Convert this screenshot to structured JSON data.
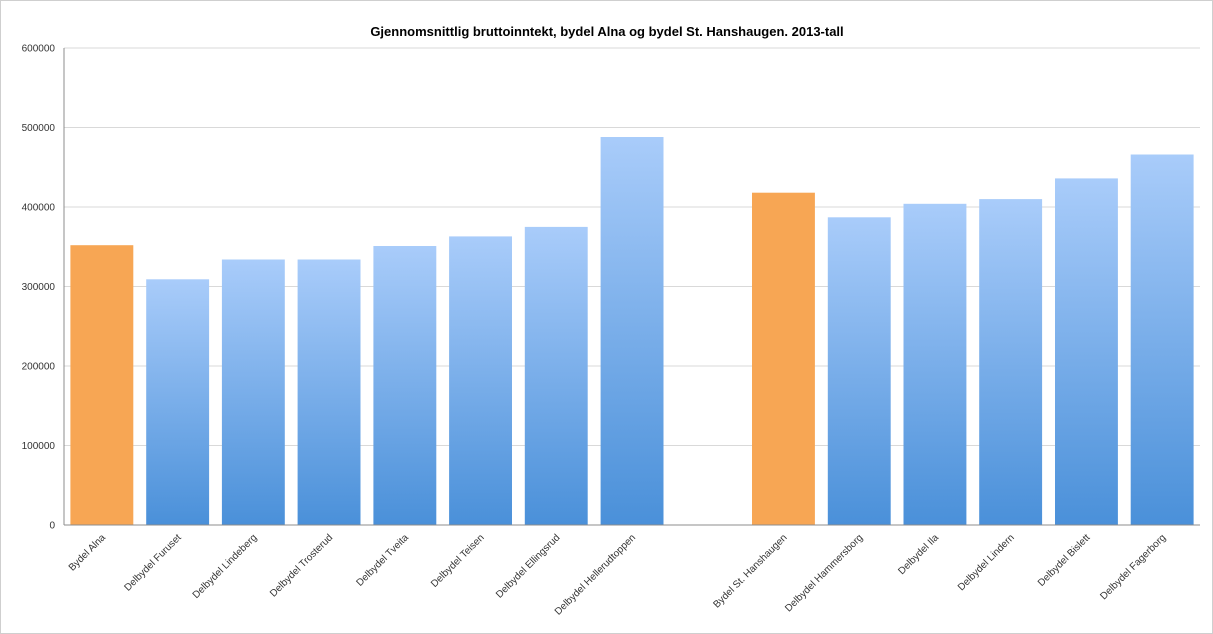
{
  "chart_data": {
    "type": "bar",
    "title": "Gjennomsnittlig bruttoinntekt, bydel Alna og bydel St. Hanshaugen. 2013-tall",
    "xlabel": "",
    "ylabel": "",
    "ylim": [
      0,
      600000
    ],
    "yticks": [
      0,
      100000,
      200000,
      300000,
      400000,
      500000,
      600000
    ],
    "ytick_labels": [
      "0",
      "100000",
      "200000",
      "300000",
      "400000",
      "500000",
      "600000"
    ],
    "grid": true,
    "legend": "none",
    "categories": [
      "Bydel Alna",
      "Delbydel Furuset",
      "Delbydel Lindeberg",
      "Delbydel Trosterud",
      "Delbydel Tveita",
      "Delbydel Teisen",
      "Delbydel Ellingsrud",
      "Delbydel Hellerudtoppen",
      "",
      "Bydel St. Hanshaugen",
      "Delbydel Hammersborg",
      "Delbydel Ila",
      "Delbydel Lindern",
      "Delbydel Bislett",
      "Delbydel Fagerborg"
    ],
    "values": [
      352000,
      309000,
      334000,
      334000,
      351000,
      363000,
      375000,
      488000,
      null,
      418000,
      387000,
      404000,
      410000,
      436000,
      466000
    ],
    "highlight": [
      true,
      false,
      false,
      false,
      false,
      false,
      false,
      false,
      false,
      true,
      false,
      false,
      false,
      false,
      false
    ],
    "colors": {
      "highlight": "#f7a654",
      "bar_top": "#a9ccfa",
      "bar_bottom": "#4a90d9",
      "grid": "#d9d9d9"
    }
  }
}
